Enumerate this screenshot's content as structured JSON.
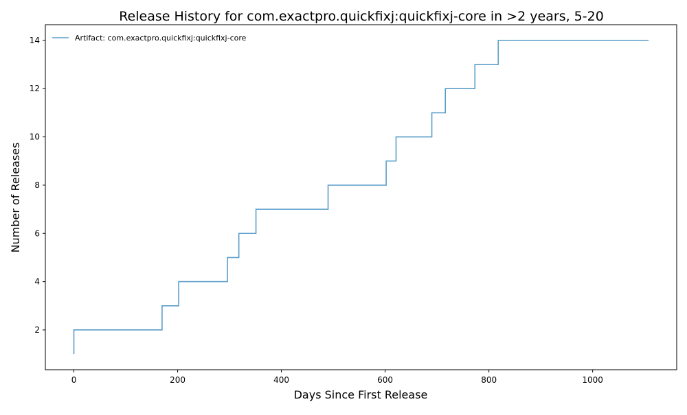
{
  "chart_data": {
    "type": "line",
    "step": "post",
    "title": "Release History for com.exactpro.quickfixj:quickfixj-core in >2 years, 5-20",
    "xlabel": "Days Since First Release",
    "ylabel": "Number of Releases",
    "xlim": [
      -55,
      1162
    ],
    "ylim": [
      0.35,
      14.65
    ],
    "xticks": [
      0,
      200,
      400,
      600,
      800,
      1000
    ],
    "yticks": [
      2,
      4,
      6,
      8,
      10,
      12,
      14
    ],
    "grid": false,
    "legend_position": "top-left",
    "series": [
      {
        "name": "Artifact: com.exactpro.quickfixj:quickfixj-core",
        "color": "#5b9ec9",
        "x": [
          0,
          0,
          170,
          202,
          296,
          318,
          351,
          490,
          602,
          621,
          690,
          716,
          773,
          818,
          1108
        ],
        "y": [
          1,
          2,
          3,
          4,
          5,
          6,
          7,
          8,
          9,
          10,
          11,
          12,
          13,
          14,
          14
        ]
      }
    ]
  }
}
